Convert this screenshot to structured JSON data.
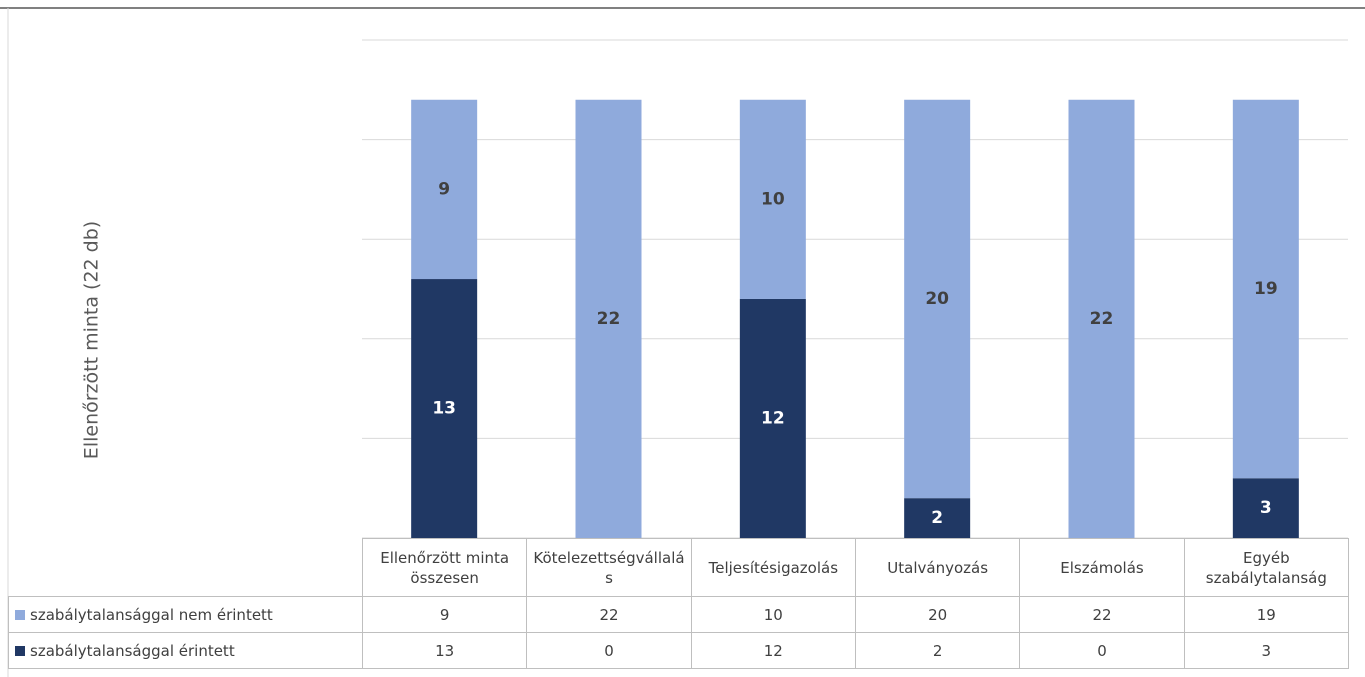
{
  "chart_data": {
    "type": "stacked_bar",
    "y_axis_title": "Ellenőrzött minta (22 db)",
    "categories": [
      "Ellenőrzött minta összesen",
      "Kötelezettségvállalás",
      "Teljesítésigazolás",
      "Utalványozás",
      "Elszámolás",
      "Egyéb szabálytalanság"
    ],
    "series": [
      {
        "name": "szabálytalansággal nem érintett",
        "color": "#8faadc",
        "values": [
          9,
          22,
          10,
          20,
          22,
          19
        ]
      },
      {
        "name": "szabálytalansággal érintett",
        "color": "#203864",
        "values": [
          13,
          0,
          12,
          2,
          0,
          3
        ]
      }
    ],
    "ylim": [
      0,
      25
    ],
    "yticks": [
      0,
      5,
      10,
      15,
      20,
      25
    ],
    "grid": true,
    "tick_labels": false,
    "data_table": true
  }
}
